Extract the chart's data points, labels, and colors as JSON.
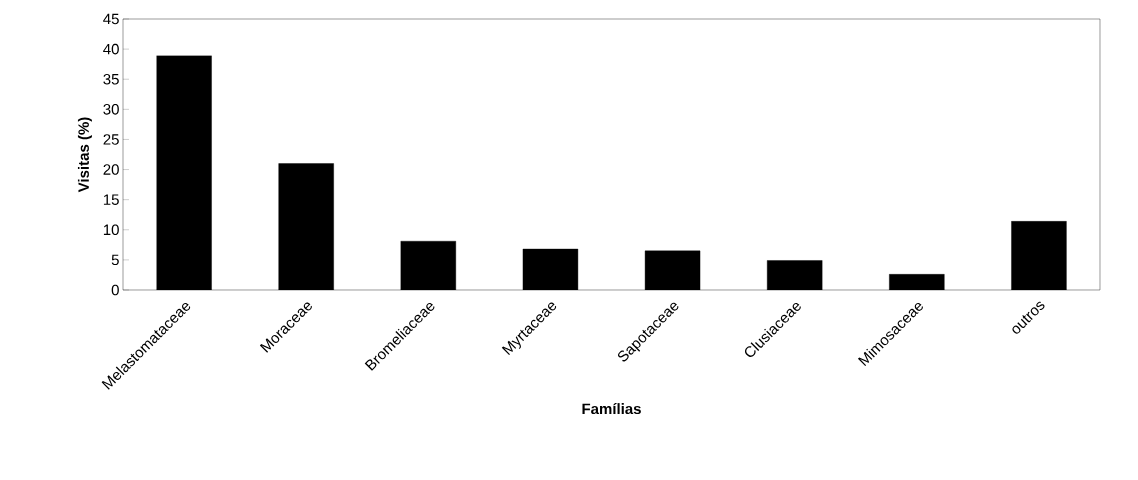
{
  "chart_data": {
    "type": "bar",
    "xlabel": "Famílias",
    "ylabel": "Visitas (%)",
    "categories": [
      "Melastomataceae",
      "Moraceae",
      "Bromeliaceae",
      "Myrtaceae",
      "Sapotaceae",
      "Clusiaceae",
      "Mimosaceae",
      "outros"
    ],
    "values": [
      38.9,
      21.0,
      8.1,
      6.8,
      6.5,
      4.9,
      2.6,
      11.4
    ],
    "color": "#000000",
    "ylim": [
      0,
      45
    ],
    "yticks": [
      0,
      5,
      10,
      15,
      20,
      25,
      30,
      35,
      40,
      45
    ]
  }
}
